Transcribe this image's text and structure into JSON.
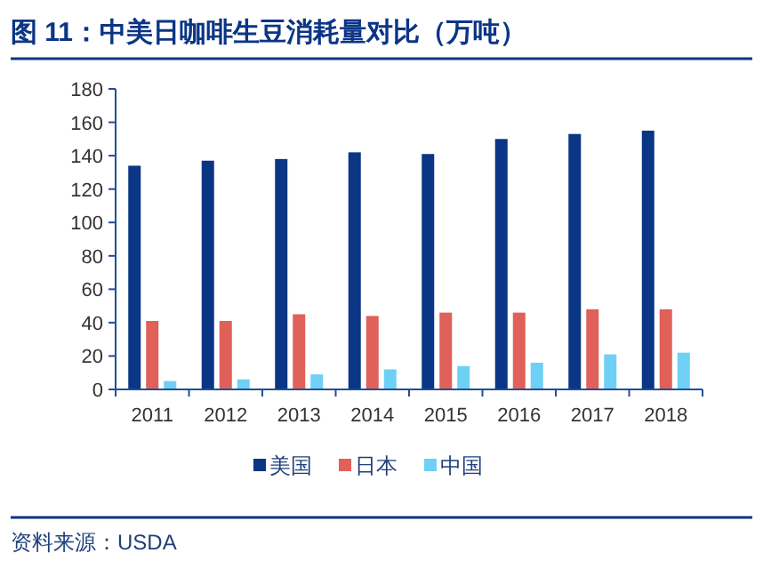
{
  "chart_data": {
    "type": "bar",
    "title": "图 11：中美日咖啡生豆消耗量对比（万吨）",
    "categories": [
      "2011",
      "2012",
      "2013",
      "2014",
      "2015",
      "2016",
      "2017",
      "2018"
    ],
    "series": [
      {
        "name": "美国",
        "color": "#0b3585",
        "values": [
          134,
          137,
          138,
          142,
          141,
          150,
          153,
          155
        ]
      },
      {
        "name": "日本",
        "color": "#e0605a",
        "values": [
          41,
          41,
          45,
          44,
          46,
          46,
          48,
          48
        ]
      },
      {
        "name": "中国",
        "color": "#6fd0f5",
        "values": [
          5,
          6,
          9,
          12,
          14,
          16,
          21,
          22
        ]
      }
    ],
    "ylim": [
      0,
      180
    ],
    "yticks": [
      0,
      20,
      40,
      60,
      80,
      100,
      120,
      140,
      160,
      180
    ],
    "grid": false,
    "legend": "bottom",
    "annotations": [
      "资料来源：USDA"
    ]
  }
}
